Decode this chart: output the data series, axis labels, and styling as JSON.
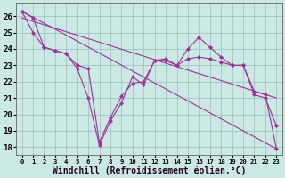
{
  "xlabel": "Windchill (Refroidissement éolien,°C)",
  "bg_color": "#cce8e4",
  "grid_color": "#9bbfba",
  "line_color": "#993399",
  "ylim": [
    17.5,
    26.8
  ],
  "xlim": [
    -0.5,
    23.5
  ],
  "yticks": [
    18,
    19,
    20,
    21,
    22,
    23,
    24,
    25,
    26
  ],
  "xticks": [
    0,
    1,
    2,
    3,
    4,
    5,
    6,
    7,
    8,
    9,
    10,
    11,
    12,
    13,
    14,
    15,
    16,
    17,
    18,
    19,
    20,
    21,
    22,
    23
  ],
  "series1_x": [
    0,
    1,
    2,
    3,
    4,
    5,
    6,
    7,
    8,
    9,
    10,
    11,
    12,
    13,
    14,
    15,
    16,
    17,
    18,
    19,
    20,
    21,
    22,
    23
  ],
  "series1_y": [
    26.3,
    25.0,
    24.1,
    23.9,
    23.7,
    23.0,
    22.8,
    18.3,
    19.8,
    21.1,
    21.9,
    22.0,
    23.3,
    23.4,
    23.0,
    23.4,
    23.5,
    23.4,
    23.2,
    23.0,
    23.0,
    21.4,
    21.2,
    17.9
  ],
  "series2_x": [
    0,
    1,
    2,
    3,
    4,
    5,
    6,
    7,
    8,
    9,
    10,
    11,
    12,
    13,
    14,
    15,
    16,
    17,
    18,
    19,
    20,
    21,
    22,
    23
  ],
  "series2_y": [
    26.3,
    25.9,
    24.1,
    23.9,
    23.7,
    22.8,
    21.0,
    18.1,
    19.6,
    20.7,
    22.3,
    21.8,
    23.3,
    23.3,
    23.0,
    24.0,
    24.7,
    24.1,
    23.5,
    23.0,
    23.0,
    21.2,
    21.0,
    19.3
  ],
  "series3_x": [
    0,
    23
  ],
  "series3_y": [
    26.3,
    17.9
  ],
  "series4_x": [
    0,
    23
  ],
  "series4_y": [
    25.9,
    21.0
  ],
  "tick_fontsize": 6.5,
  "xlabel_fontsize": 7.0
}
